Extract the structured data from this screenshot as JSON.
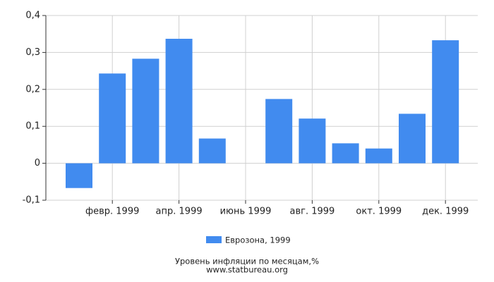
{
  "chart_data": {
    "type": "bar",
    "categories": [
      null,
      "февр. 1999",
      null,
      "апр. 1999",
      null,
      "июнь 1999",
      null,
      "авг. 1999",
      null,
      "окт. 1999",
      null,
      "дек. 1999"
    ],
    "series": [
      {
        "name": "Еврозона, 1999",
        "color": "#418bef",
        "values": [
          -0.067,
          0.243,
          0.283,
          0.337,
          0.067,
          0,
          0.174,
          0.121,
          0.054,
          0.04,
          0.134,
          0.333
        ]
      }
    ],
    "ylim": [
      -0.1,
      0.4
    ],
    "yticks": [
      {
        "value": -0.1,
        "label": "-0,1"
      },
      0,
      {
        "value": 0.1,
        "label": "0,1"
      },
      {
        "value": 0.2,
        "label": "0,2"
      },
      {
        "value": 0.3,
        "label": "0,3"
      },
      {
        "value": 0.4,
        "label": "0,4"
      }
    ],
    "grid": true,
    "caption": "Уровень инфляции по месяцам,%",
    "source": "www.statbureau.org"
  }
}
